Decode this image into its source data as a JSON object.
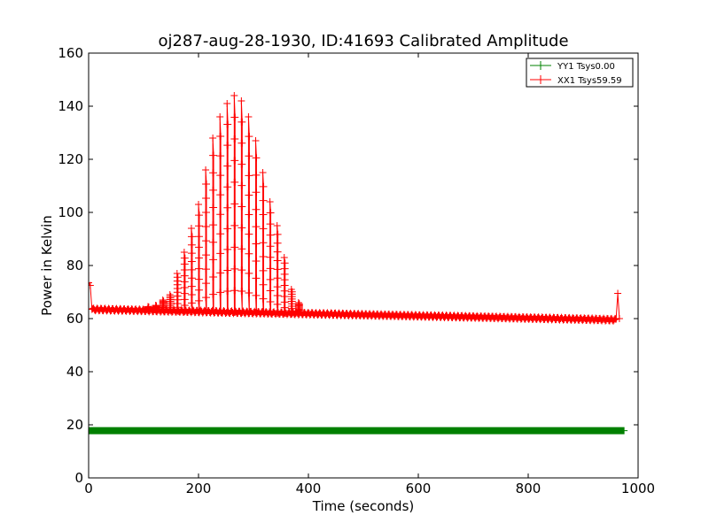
{
  "chart_data": {
    "type": "line",
    "title": "oj287-aug-28-1930, ID:41693 Calibrated Amplitude",
    "xlabel": "Time (seconds)",
    "ylabel": "Power in Kelvin",
    "xlim": [
      0,
      1000
    ],
    "ylim": [
      0,
      160
    ],
    "xticks": [
      0,
      200,
      400,
      600,
      800,
      1000
    ],
    "yticks": [
      0,
      20,
      40,
      60,
      80,
      100,
      120,
      140,
      160
    ],
    "xtick_labels": [
      "0",
      "200",
      "400",
      "600",
      "800",
      "1000"
    ],
    "ytick_labels": [
      "0",
      "20",
      "40",
      "60",
      "80",
      "100",
      "120",
      "140",
      "160"
    ],
    "grid": false,
    "legend_position": "top-right",
    "marker": "+",
    "series": [
      {
        "name": "YY1 Tsys0.00",
        "color": "#008000",
        "x_range": [
          0,
          975
        ],
        "baseline": 17.8,
        "bursts": []
      },
      {
        "name": "XX1 Tsys59.59",
        "color": "#ff0000",
        "x_range": [
          0,
          970
        ],
        "baseline_start": 63.5,
        "baseline_end": 59.5,
        "start_spike": [
          [
            0,
            73.5
          ],
          [
            3,
            72.5
          ],
          [
            6,
            63.5
          ]
        ],
        "end_spike": [
          [
            960,
            60
          ],
          [
            963,
            69.5
          ],
          [
            966,
            60
          ]
        ],
        "bursts": [
          {
            "x": 108,
            "peak": 64.5
          },
          {
            "x": 122,
            "peak": 65
          },
          {
            "x": 135,
            "peak": 67
          },
          {
            "x": 148,
            "peak": 69
          },
          {
            "x": 161,
            "peak": 77
          },
          {
            "x": 174,
            "peak": 85
          },
          {
            "x": 187,
            "peak": 94
          },
          {
            "x": 200,
            "peak": 103
          },
          {
            "x": 213,
            "peak": 116
          },
          {
            "x": 226,
            "peak": 128
          },
          {
            "x": 239,
            "peak": 136
          },
          {
            "x": 252,
            "peak": 141
          },
          {
            "x": 265,
            "peak": 144
          },
          {
            "x": 278,
            "peak": 142
          },
          {
            "x": 291,
            "peak": 136
          },
          {
            "x": 304,
            "peak": 127
          },
          {
            "x": 317,
            "peak": 115
          },
          {
            "x": 330,
            "peak": 104
          },
          {
            "x": 343,
            "peak": 95
          },
          {
            "x": 356,
            "peak": 83
          },
          {
            "x": 369,
            "peak": 71
          },
          {
            "x": 382,
            "peak": 66
          }
        ]
      }
    ]
  }
}
